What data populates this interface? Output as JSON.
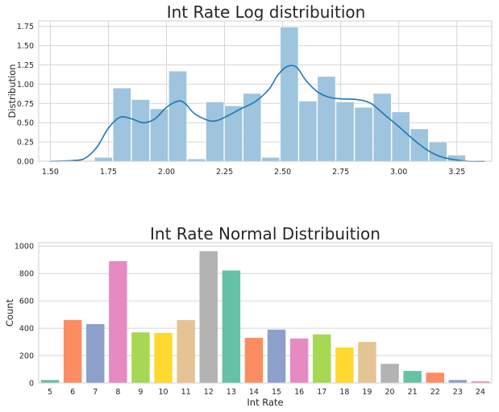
{
  "chart_data": [
    {
      "type": "histogram",
      "title": "Int Rate Log distribuition",
      "xlabel": "",
      "ylabel": "Distribution",
      "xlim": [
        1.45,
        3.4
      ],
      "ylim": [
        0,
        1.82
      ],
      "xticks": [
        1.5,
        1.75,
        2.0,
        2.25,
        2.5,
        2.75,
        3.0,
        3.25
      ],
      "xtick_labels": [
        "1.50",
        "1.75",
        "2.00",
        "2.25",
        "2.50",
        "2.75",
        "3.00",
        "3.25"
      ],
      "yticks": [
        0,
        0.25,
        0.5,
        0.75,
        1.0,
        1.25,
        1.5,
        1.75
      ],
      "ytick_labels": [
        "0.00",
        "0.25",
        "0.50",
        "0.75",
        "1.00",
        "1.25",
        "1.50",
        "1.75"
      ],
      "grid": true,
      "bar_color": "#9ec4de",
      "kde_color": "#1f77b4",
      "bins": [
        {
          "x0": 1.61,
          "x1": 1.69,
          "value": 0.01
        },
        {
          "x0": 1.69,
          "x1": 1.77,
          "value": 0.05
        },
        {
          "x0": 1.77,
          "x1": 1.85,
          "value": 0.95
        },
        {
          "x0": 1.85,
          "x1": 1.93,
          "value": 0.8
        },
        {
          "x0": 1.93,
          "x1": 2.01,
          "value": 0.68
        },
        {
          "x0": 2.01,
          "x1": 2.09,
          "value": 1.17
        },
        {
          "x0": 2.09,
          "x1": 2.17,
          "value": 0.03
        },
        {
          "x0": 2.17,
          "x1": 2.25,
          "value": 0.77
        },
        {
          "x0": 2.25,
          "x1": 2.33,
          "value": 0.72
        },
        {
          "x0": 2.33,
          "x1": 2.41,
          "value": 0.88
        },
        {
          "x0": 2.41,
          "x1": 2.49,
          "value": 0.05
        },
        {
          "x0": 2.49,
          "x1": 2.57,
          "value": 1.74
        },
        {
          "x0": 2.57,
          "x1": 2.65,
          "value": 0.78
        },
        {
          "x0": 2.65,
          "x1": 2.73,
          "value": 1.1
        },
        {
          "x0": 2.73,
          "x1": 2.81,
          "value": 0.77
        },
        {
          "x0": 2.81,
          "x1": 2.89,
          "value": 0.7
        },
        {
          "x0": 2.89,
          "x1": 2.97,
          "value": 0.88
        },
        {
          "x0": 2.97,
          "x1": 3.05,
          "value": 0.64
        },
        {
          "x0": 3.05,
          "x1": 3.13,
          "value": 0.42
        },
        {
          "x0": 3.13,
          "x1": 3.21,
          "value": 0.25
        },
        {
          "x0": 3.21,
          "x1": 3.29,
          "value": 0.08
        }
      ],
      "kde": {
        "x": [
          1.5,
          1.6,
          1.65,
          1.7,
          1.75,
          1.8,
          1.85,
          1.9,
          1.95,
          2.0,
          2.05,
          2.08,
          2.12,
          2.18,
          2.22,
          2.27,
          2.32,
          2.38,
          2.44,
          2.48,
          2.52,
          2.56,
          2.6,
          2.65,
          2.7,
          2.75,
          2.82,
          2.88,
          2.94,
          3.0,
          3.06,
          3.12,
          3.18,
          3.24,
          3.3,
          3.37
        ],
        "y": [
          0.0,
          0.01,
          0.04,
          0.18,
          0.43,
          0.57,
          0.55,
          0.5,
          0.55,
          0.7,
          0.78,
          0.75,
          0.62,
          0.53,
          0.53,
          0.6,
          0.68,
          0.77,
          0.93,
          1.12,
          1.23,
          1.22,
          1.05,
          0.9,
          0.83,
          0.81,
          0.8,
          0.75,
          0.6,
          0.45,
          0.29,
          0.15,
          0.06,
          0.02,
          0.0,
          0.0
        ]
      }
    },
    {
      "type": "bar",
      "title": "Int Rate Normal Distribuition",
      "xlabel": "Int Rate",
      "ylabel": "Count",
      "ylim": [
        0,
        1025
      ],
      "yticks": [
        0,
        200,
        400,
        600,
        800,
        1000
      ],
      "ytick_labels": [
        "0",
        "200",
        "400",
        "600",
        "800",
        "1000"
      ],
      "grid": true,
      "categories": [
        "5",
        "6",
        "7",
        "8",
        "9",
        "10",
        "11",
        "12",
        "13",
        "14",
        "15",
        "16",
        "17",
        "18",
        "19",
        "20",
        "21",
        "22",
        "23",
        "24"
      ],
      "values": [
        22,
        460,
        430,
        890,
        370,
        365,
        460,
        963,
        822,
        330,
        390,
        325,
        355,
        260,
        300,
        140,
        88,
        75,
        22,
        12
      ],
      "colors": [
        "#66c2a5",
        "#fc8d62",
        "#8da0cb",
        "#e78ac3",
        "#a6d854",
        "#ffd92f",
        "#e5c494",
        "#b3b3b3",
        "#66c2a5",
        "#fc8d62",
        "#8da0cb",
        "#e78ac3",
        "#a6d854",
        "#ffd92f",
        "#e5c494",
        "#b3b3b3",
        "#66c2a5",
        "#fc8d62",
        "#8da0cb",
        "#e78ac3"
      ]
    }
  ]
}
